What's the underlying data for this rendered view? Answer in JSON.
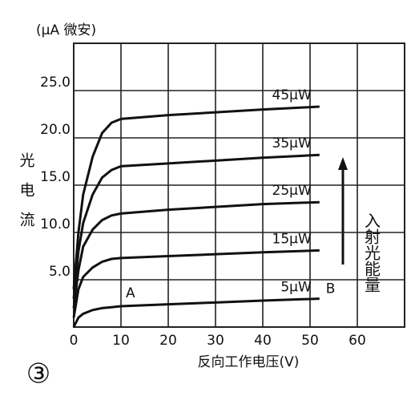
{
  "chart_data": {
    "type": "line",
    "y_unit": "(μA 微安)",
    "ylabel": "光电流",
    "xlabel": "反向工作电压(V)",
    "arrow_label": "入射光能量",
    "figure_number": "③",
    "point_labels": [
      "A",
      "B"
    ],
    "x": [
      0,
      1,
      2,
      4,
      6,
      8,
      10,
      20,
      30,
      40,
      52
    ],
    "series": [
      {
        "name": "45μW",
        "color": "#111",
        "values": [
          4,
          10,
          14,
          18,
          20.5,
          21.6,
          22,
          22.4,
          22.7,
          23,
          23.3
        ]
      },
      {
        "name": "35μW",
        "color": "#111",
        "values": [
          3,
          8,
          11,
          14,
          15.8,
          16.6,
          17,
          17.3,
          17.6,
          17.9,
          18.2
        ]
      },
      {
        "name": "25μW",
        "color": "#111",
        "values": [
          2,
          6,
          8.5,
          10.3,
          11.3,
          11.8,
          12,
          12.4,
          12.7,
          13,
          13.2
        ]
      },
      {
        "name": "15μW",
        "color": "#111",
        "values": [
          1,
          4,
          5.3,
          6.3,
          6.9,
          7.2,
          7.3,
          7.5,
          7.7,
          7.9,
          8.1
        ]
      },
      {
        "name": "5μW",
        "color": "#111",
        "values": [
          0,
          1,
          1.4,
          1.8,
          2,
          2.1,
          2.2,
          2.4,
          2.6,
          2.8,
          3
        ]
      }
    ],
    "xlim": [
      0,
      70
    ],
    "ylim": [
      0,
      30
    ],
    "xticks": [
      0,
      10,
      20,
      30,
      40,
      50,
      60
    ],
    "yticks": [
      {
        "value": 5,
        "label": "5.0"
      },
      {
        "value": 10,
        "label": "10.0"
      },
      {
        "value": 15,
        "label": "15.0"
      },
      {
        "value": 20,
        "label": "20.0"
      },
      {
        "value": 25,
        "label": "25.0"
      }
    ],
    "grid": true
  }
}
